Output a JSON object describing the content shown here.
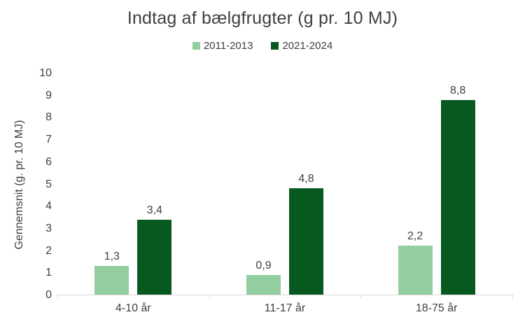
{
  "title": "Indtag af bælgfrugter (g pr. 10 MJ)",
  "y_axis_title": "Gennemsnit (g. pr. 10 MJ)",
  "legend": {
    "items": [
      {
        "label": "2011-2013",
        "color": "#93CEA0"
      },
      {
        "label": "2021-2024",
        "color": "#07591F"
      }
    ]
  },
  "colors": {
    "series_light": "#93CEA0",
    "series_dark": "#07591F",
    "text": "#404040",
    "axis_line": "#d9d9d9",
    "background": "#ffffff"
  },
  "chart_data": {
    "type": "bar",
    "title": "Indtag af bælgfrugter (g pr. 10 MJ)",
    "categories": [
      "4-10 år",
      "11-17 år",
      "18-75 år"
    ],
    "series": [
      {
        "name": "2011-2013",
        "color": "#93CEA0",
        "values": [
          1.3,
          0.9,
          2.2
        ],
        "labels": [
          "1,3",
          "0,9",
          "2,2"
        ]
      },
      {
        "name": "2021-2024",
        "color": "#07591F",
        "values": [
          3.4,
          4.8,
          8.8
        ],
        "labels": [
          "3,4",
          "4,8",
          "8,8"
        ]
      }
    ],
    "xlabel": "",
    "ylabel": "Gennemsnit (g. pr. 10 MJ)",
    "ylim": [
      0,
      10
    ],
    "yticks": [
      0,
      1,
      2,
      3,
      4,
      5,
      6,
      7,
      8,
      9,
      10
    ],
    "grid": false,
    "legend_position": "top",
    "data_labels_shown": true
  }
}
